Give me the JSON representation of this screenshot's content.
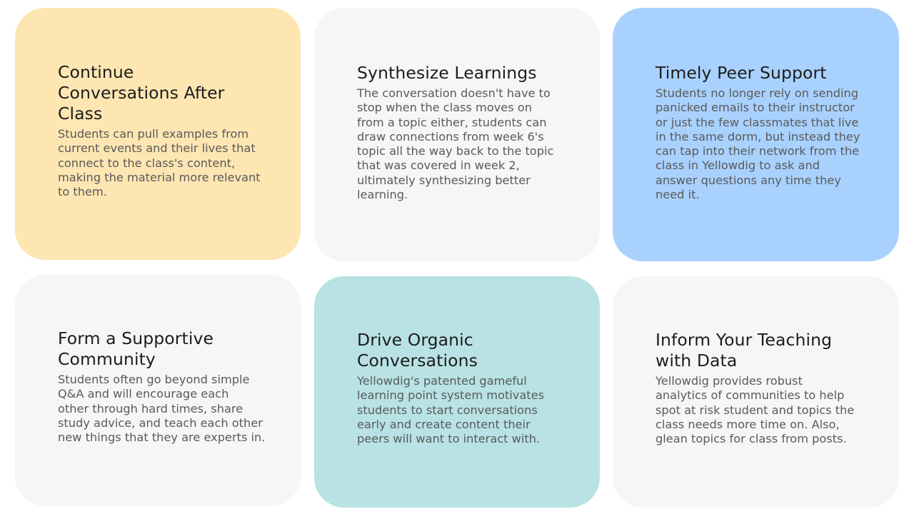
{
  "cards": [
    {
      "title": "Continue\nConversations After\nClass",
      "body": " Students can pull examples from\ncurrent events and their lives that\nconnect to the class's content,\nmaking the material more relevant\nto them.",
      "color": "#fde6b2"
    },
    {
      "title": "Synthesize Learnings",
      "body": "The conversation doesn't have to\nstop when the class moves on\nfrom a topic either,  students can\ndraw connections from week 6's\ntopic all the way back to the topic\nthat was covered in week 2,\nultimately synthesizing better\nlearning.",
      "color": "#f6f6f6"
    },
    {
      "title": "Timely Peer Support",
      "body": "Students no longer rely on sending\npanicked emails to their instructor\nor just the few classmates that live\nin the same dorm, but instead they\ncan tap into their network from the\nclass in Yellowdig to ask and\nanswer questions any time they\nneed it.",
      "color": "#a9d1fd"
    },
    {
      "title": "Form a Supportive\nCommunity",
      "body": "Students often go beyond simple\nQ&A and will encourage each\nother through hard times, share\nstudy advice, and teach each other\nnew things that they are experts in.",
      "color": "#f6f6f6"
    },
    {
      "title": "Drive Organic\nConversations",
      "body": "Yellowdig's patented gameful\nlearning point system motivates\nstudents to start conversations\nearly and create content their\npeers will want to interact with.",
      "color": "#b8e2e4"
    },
    {
      "title": "Inform Your Teaching\nwith Data",
      "body": "Yellowdig provides robust\nanalytics of communities to help\nspot at risk student and topics the\nclass needs more time on. Also,\nglean topics for class from posts.",
      "color": "#f6f6f6"
    }
  ]
}
